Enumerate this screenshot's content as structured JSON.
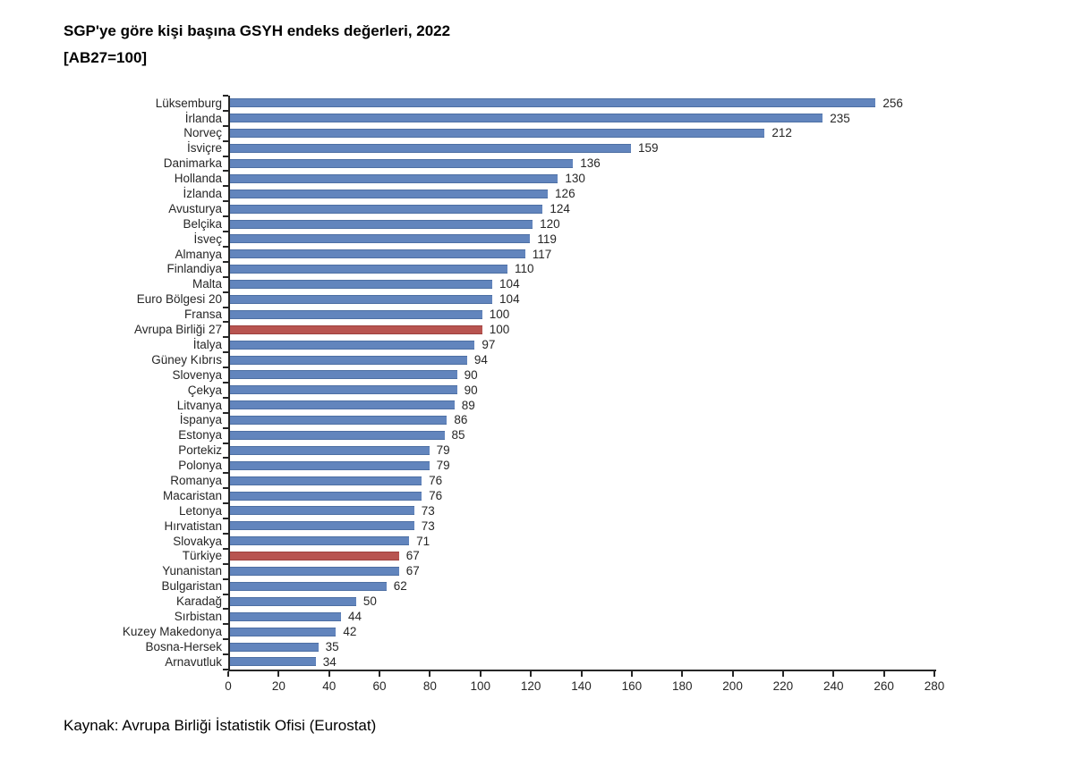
{
  "title": "SGP'ye göre kişi başına GSYH endeks değerleri, 2022",
  "subtitle": "[AB27=100]",
  "source": "Kaynak: Avrupa Birliği İstatistik Ofisi (Eurostat)",
  "colors": {
    "bar": "#6285bd",
    "bar_edge": "#4d6fa3",
    "highlight": "#b85450",
    "highlight_edge": "#9c403d",
    "axis": "#262626",
    "text": "#262626"
  },
  "chart_data": {
    "type": "bar",
    "orientation": "horizontal",
    "title": "SGP'ye göre kişi başına GSYH endeks değerleri, 2022 [AB27=100]",
    "xlabel": "",
    "ylabel": "",
    "xlim": [
      0,
      280
    ],
    "x_ticks": [
      0,
      20,
      40,
      60,
      80,
      100,
      120,
      140,
      160,
      180,
      200,
      220,
      240,
      260,
      280
    ],
    "grid": false,
    "value_labels": true,
    "highlighted_categories": [
      "Avrupa Birliği 27",
      "Türkiye"
    ],
    "categories": [
      "Lüksemburg",
      "İrlanda",
      "Norveç",
      "İsviçre",
      "Danimarka",
      "Hollanda",
      "İzlanda",
      "Avusturya",
      "Belçika",
      "İsveç",
      "Almanya",
      "Finlandiya",
      "Malta",
      "Euro Bölgesi 20",
      "Fransa",
      "Avrupa Birliği 27",
      "İtalya",
      "Güney Kıbrıs",
      "Slovenya",
      "Çekya",
      "Litvanya",
      "İspanya",
      "Estonya",
      "Portekiz",
      "Polonya",
      "Romanya",
      "Macaristan",
      "Letonya",
      "Hırvatistan",
      "Slovakya",
      "Türkiye",
      "Yunanistan",
      "Bulgaristan",
      "Karadağ",
      "Sırbistan",
      "Kuzey Makedonya",
      "Bosna-Hersek",
      "Arnavutluk"
    ],
    "values": [
      256,
      235,
      212,
      159,
      136,
      130,
      126,
      124,
      120,
      119,
      117,
      110,
      104,
      104,
      100,
      100,
      97,
      94,
      90,
      90,
      89,
      86,
      85,
      79,
      79,
      76,
      76,
      73,
      73,
      71,
      67,
      67,
      62,
      50,
      44,
      42,
      35,
      34
    ]
  }
}
